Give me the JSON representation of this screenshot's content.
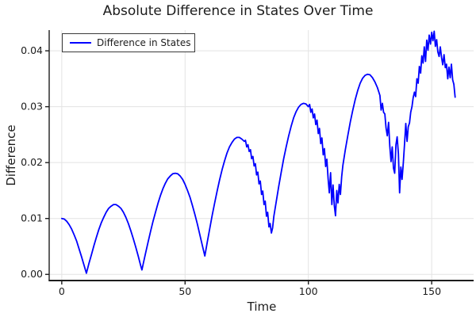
{
  "title": "Absolute Difference in States Over Time",
  "legend": {
    "label": "Difference in States"
  },
  "axes": {
    "xlabel": "Time",
    "ylabel": "Difference",
    "x_tick_labels": [
      "0",
      "50",
      "100",
      "150"
    ],
    "y_tick_labels": [
      "0.00",
      "0.01",
      "0.02",
      "0.03",
      "0.04"
    ]
  },
  "colors": {
    "line": "#0000ff",
    "grid": "#e3e3e3",
    "spine": "#1d1d1d",
    "tick_text": "#1c1c1c",
    "background": "#ffffff"
  },
  "chart_data": {
    "type": "line",
    "title": "Absolute Difference in States Over Time",
    "xlabel": "Time",
    "ylabel": "Difference",
    "xlim": [
      -5.1,
      167.0
    ],
    "ylim": [
      -0.0011,
      0.0437
    ],
    "x_ticks": [
      0,
      50,
      100,
      150
    ],
    "y_ticks": [
      0.0,
      0.01,
      0.02,
      0.03,
      0.04
    ],
    "grid": true,
    "legend_position": "top-left",
    "series": [
      {
        "name": "Difference in States",
        "points": [
          [
            0,
            0.01
          ],
          [
            1,
            0.0099
          ],
          [
            2,
            0.0095
          ],
          [
            3,
            0.0089
          ],
          [
            4,
            0.0081
          ],
          [
            5,
            0.0071
          ],
          [
            6,
            0.006
          ],
          [
            7,
            0.0046
          ],
          [
            8,
            0.0032
          ],
          [
            9,
            0.0017
          ],
          [
            10,
            0.0002
          ],
          [
            11,
            0.0019
          ],
          [
            12,
            0.0035
          ],
          [
            13,
            0.0051
          ],
          [
            14,
            0.0066
          ],
          [
            15,
            0.008
          ],
          [
            16,
            0.0092
          ],
          [
            17,
            0.0102
          ],
          [
            18,
            0.0111
          ],
          [
            19,
            0.0118
          ],
          [
            20,
            0.0122
          ],
          [
            21,
            0.0125
          ],
          [
            22,
            0.0125
          ],
          [
            23,
            0.0122
          ],
          [
            24,
            0.0118
          ],
          [
            25,
            0.0111
          ],
          [
            26,
            0.0102
          ],
          [
            27,
            0.0091
          ],
          [
            28,
            0.0078
          ],
          [
            29,
            0.0064
          ],
          [
            30,
            0.0049
          ],
          [
            31,
            0.0033
          ],
          [
            32,
            0.0016
          ],
          [
            32.5,
            0.0008
          ],
          [
            33,
            0.0018
          ],
          [
            34,
            0.0038
          ],
          [
            35,
            0.0058
          ],
          [
            36,
            0.0077
          ],
          [
            37,
            0.0095
          ],
          [
            38,
            0.0111
          ],
          [
            39,
            0.0127
          ],
          [
            40,
            0.0141
          ],
          [
            41,
            0.0153
          ],
          [
            42,
            0.0163
          ],
          [
            43,
            0.0171
          ],
          [
            44,
            0.0176
          ],
          [
            45,
            0.018
          ],
          [
            46,
            0.0181
          ],
          [
            47,
            0.018
          ],
          [
            48,
            0.0176
          ],
          [
            49,
            0.017
          ],
          [
            50,
            0.0161
          ],
          [
            51,
            0.015
          ],
          [
            52,
            0.0138
          ],
          [
            53,
            0.0123
          ],
          [
            54,
            0.0107
          ],
          [
            55,
            0.009
          ],
          [
            56,
            0.0071
          ],
          [
            57,
            0.0052
          ],
          [
            58,
            0.0033
          ],
          [
            59,
            0.0058
          ],
          [
            60,
            0.0082
          ],
          [
            61,
            0.0106
          ],
          [
            62,
            0.0128
          ],
          [
            63,
            0.0149
          ],
          [
            64,
            0.0169
          ],
          [
            65,
            0.0187
          ],
          [
            66,
            0.0203
          ],
          [
            67,
            0.0217
          ],
          [
            68,
            0.0228
          ],
          [
            69,
            0.0236
          ],
          [
            70,
            0.0242
          ],
          [
            71,
            0.0245
          ],
          [
            72,
            0.0245
          ],
          [
            73,
            0.0242
          ],
          [
            74,
            0.0238
          ],
          [
            74.5,
            0.024
          ],
          [
            75,
            0.0228
          ],
          [
            75.5,
            0.0232
          ],
          [
            76,
            0.022
          ],
          [
            76.5,
            0.0223
          ],
          [
            77,
            0.0207
          ],
          [
            77.5,
            0.0211
          ],
          [
            78,
            0.0194
          ],
          [
            78.5,
            0.0198
          ],
          [
            79,
            0.0178
          ],
          [
            79.5,
            0.0183
          ],
          [
            80,
            0.0162
          ],
          [
            80.5,
            0.0167
          ],
          [
            81,
            0.0143
          ],
          [
            81.5,
            0.0149
          ],
          [
            82,
            0.0125
          ],
          [
            82.5,
            0.0131
          ],
          [
            83,
            0.0104
          ],
          [
            83.5,
            0.0111
          ],
          [
            84,
            0.0085
          ],
          [
            84.5,
            0.0091
          ],
          [
            85,
            0.0074
          ],
          [
            85.5,
            0.0083
          ],
          [
            86,
            0.0104
          ],
          [
            87,
            0.0131
          ],
          [
            88,
            0.0158
          ],
          [
            89,
            0.0183
          ],
          [
            90,
            0.0207
          ],
          [
            91,
            0.0228
          ],
          [
            92,
            0.0248
          ],
          [
            93,
            0.0265
          ],
          [
            94,
            0.028
          ],
          [
            95,
            0.0291
          ],
          [
            96,
            0.0299
          ],
          [
            97,
            0.0304
          ],
          [
            98,
            0.0306
          ],
          [
            99,
            0.0305
          ],
          [
            100,
            0.03
          ],
          [
            100.5,
            0.0304
          ],
          [
            101,
            0.029
          ],
          [
            101.5,
            0.0296
          ],
          [
            102,
            0.028
          ],
          [
            102.5,
            0.0287
          ],
          [
            103,
            0.0268
          ],
          [
            103.5,
            0.0276
          ],
          [
            104,
            0.0252
          ],
          [
            104.5,
            0.0261
          ],
          [
            105,
            0.0234
          ],
          [
            105.5,
            0.0244
          ],
          [
            106,
            0.0214
          ],
          [
            106.5,
            0.0225
          ],
          [
            107,
            0.0193
          ],
          [
            107.5,
            0.0206
          ],
          [
            108,
            0.0171
          ],
          [
            108.5,
            0.0146
          ],
          [
            109,
            0.0182
          ],
          [
            109.5,
            0.0125
          ],
          [
            110,
            0.016
          ],
          [
            110.5,
            0.0123
          ],
          [
            111,
            0.0105
          ],
          [
            111.5,
            0.015
          ],
          [
            112,
            0.0128
          ],
          [
            112.5,
            0.0161
          ],
          [
            113,
            0.0143
          ],
          [
            113.5,
            0.0175
          ],
          [
            114,
            0.0195
          ],
          [
            115,
            0.0223
          ],
          [
            116,
            0.0249
          ],
          [
            117,
            0.0273
          ],
          [
            118,
            0.0294
          ],
          [
            119,
            0.0313
          ],
          [
            120,
            0.0329
          ],
          [
            121,
            0.0342
          ],
          [
            122,
            0.0351
          ],
          [
            123,
            0.0356
          ],
          [
            124,
            0.0358
          ],
          [
            125,
            0.0357
          ],
          [
            126,
            0.0352
          ],
          [
            127,
            0.0344
          ],
          [
            128,
            0.0334
          ],
          [
            129,
            0.032
          ],
          [
            129.5,
            0.0294
          ],
          [
            130,
            0.0306
          ],
          [
            130.5,
            0.029
          ],
          [
            131,
            0.0287
          ],
          [
            131.5,
            0.0262
          ],
          [
            132,
            0.0248
          ],
          [
            132.5,
            0.0272
          ],
          [
            133,
            0.023
          ],
          [
            133.5,
            0.0202
          ],
          [
            134,
            0.0228
          ],
          [
            134.5,
            0.019
          ],
          [
            135,
            0.0181
          ],
          [
            135.5,
            0.0232
          ],
          [
            136,
            0.0246
          ],
          [
            136.5,
            0.0216
          ],
          [
            137,
            0.0146
          ],
          [
            137.5,
            0.0192
          ],
          [
            138,
            0.017
          ],
          [
            138.5,
            0.02
          ],
          [
            139,
            0.0235
          ],
          [
            139.5,
            0.027
          ],
          [
            140,
            0.0238
          ],
          [
            140.5,
            0.0264
          ],
          [
            141,
            0.0271
          ],
          [
            141.5,
            0.029
          ],
          [
            142,
            0.03
          ],
          [
            142.5,
            0.0316
          ],
          [
            143,
            0.0326
          ],
          [
            143.5,
            0.0318
          ],
          [
            144,
            0.035
          ],
          [
            144.5,
            0.0342
          ],
          [
            145,
            0.0372
          ],
          [
            145.5,
            0.036
          ],
          [
            146,
            0.0391
          ],
          [
            146.5,
            0.0378
          ],
          [
            147,
            0.0407
          ],
          [
            147.5,
            0.0381
          ],
          [
            148,
            0.0419
          ],
          [
            148.5,
            0.0401
          ],
          [
            149,
            0.0428
          ],
          [
            149.5,
            0.0412
          ],
          [
            150,
            0.0433
          ],
          [
            150.5,
            0.0418
          ],
          [
            151,
            0.0435
          ],
          [
            151.5,
            0.0408
          ],
          [
            152,
            0.042
          ],
          [
            152.5,
            0.0398
          ],
          [
            153,
            0.039
          ],
          [
            153.5,
            0.0407
          ],
          [
            154,
            0.0388
          ],
          [
            154.5,
            0.0375
          ],
          [
            155,
            0.0393
          ],
          [
            155.5,
            0.037
          ],
          [
            156,
            0.0376
          ],
          [
            156.5,
            0.035
          ],
          [
            157,
            0.0371
          ],
          [
            157.5,
            0.0352
          ],
          [
            158,
            0.0376
          ],
          [
            158.5,
            0.0348
          ],
          [
            159,
            0.034
          ],
          [
            159.5,
            0.0317
          ]
        ]
      }
    ]
  }
}
